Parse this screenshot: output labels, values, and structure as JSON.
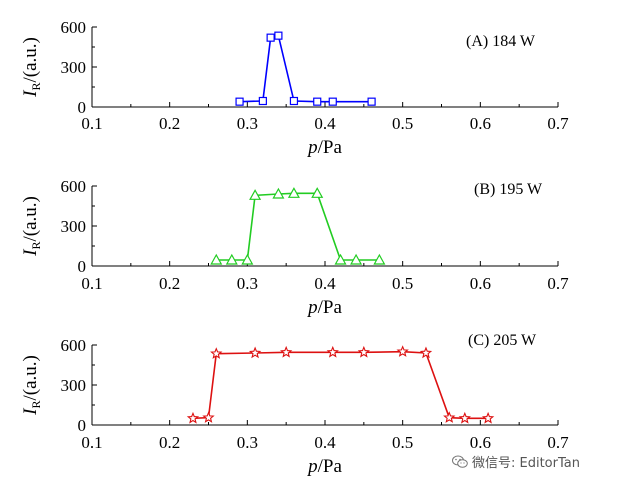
{
  "chart_data": [
    {
      "type": "line",
      "panel_label": "(A) 184 W",
      "color": "#0000ff",
      "marker": "square",
      "x": [
        0.29,
        0.32,
        0.33,
        0.34,
        0.36,
        0.39,
        0.41,
        0.46
      ],
      "y": [
        40,
        45,
        520,
        535,
        45,
        40,
        40,
        40
      ],
      "xlabel_var": "p",
      "xlabel_unit": "/Pa",
      "ylabel_var": "I",
      "ylabel_sub": "R",
      "ylabel_unit": "/(a.u.)",
      "xlim": [
        0.1,
        0.7
      ],
      "ylim": [
        0,
        600
      ],
      "xticks": [
        "0.1",
        "0.2",
        "0.3",
        "0.4",
        "0.5",
        "0.6",
        "0.7"
      ],
      "yticks": [
        "0",
        "300",
        "600"
      ]
    },
    {
      "type": "line",
      "panel_label": "(B) 195 W",
      "color": "#22cc22",
      "marker": "triangle",
      "x": [
        0.26,
        0.28,
        0.3,
        0.31,
        0.34,
        0.36,
        0.39,
        0.42,
        0.44,
        0.47
      ],
      "y": [
        45,
        45,
        45,
        530,
        540,
        545,
        545,
        45,
        45,
        45
      ],
      "xlabel_var": "p",
      "xlabel_unit": "/Pa",
      "ylabel_var": "I",
      "ylabel_sub": "R",
      "ylabel_unit": "/(a.u.)",
      "xlim": [
        0.1,
        0.7
      ],
      "ylim": [
        0,
        600
      ],
      "xticks": [
        "0.1",
        "0.2",
        "0.3",
        "0.4",
        "0.5",
        "0.6",
        "0.7"
      ],
      "yticks": [
        "0",
        "300",
        "600"
      ]
    },
    {
      "type": "line",
      "panel_label": "(C) 205 W",
      "color": "#dd1111",
      "marker": "star",
      "x": [
        0.23,
        0.25,
        0.26,
        0.31,
        0.35,
        0.41,
        0.45,
        0.5,
        0.53,
        0.56,
        0.58,
        0.61
      ],
      "y": [
        50,
        55,
        535,
        540,
        545,
        545,
        545,
        550,
        540,
        55,
        50,
        50
      ],
      "xlabel_var": "p",
      "xlabel_unit": "/Pa",
      "ylabel_var": "I",
      "ylabel_sub": "R",
      "ylabel_unit": "/(a.u.)",
      "xlim": [
        0.1,
        0.7
      ],
      "ylim": [
        0,
        600
      ],
      "xticks": [
        "0.1",
        "0.2",
        "0.3",
        "0.4",
        "0.5",
        "0.6",
        "0.7"
      ],
      "yticks": [
        "0",
        "300",
        "600"
      ]
    }
  ],
  "watermark": {
    "text": "微信号: EditorTan",
    "icon": "wechat-icon"
  }
}
